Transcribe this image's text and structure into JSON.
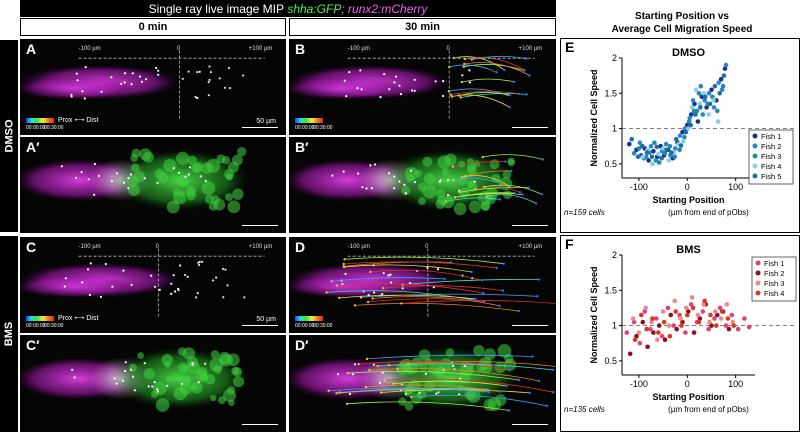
{
  "header": {
    "title_prefix": "Single ray live image MIP",
    "title_green": "shha:GFP;",
    "title_magenta": "runx2:mCherry",
    "col_0": "0 min",
    "col_30": "30 min",
    "right_title_line1": "Starting Position vs",
    "right_title_line2": "Average Cell Migration Speed"
  },
  "rows": {
    "dmso": "DMSO",
    "bms": "BMS"
  },
  "panels": {
    "A": "A",
    "B": "B",
    "A2": "A′",
    "B2": "B′",
    "C": "C",
    "D": "D",
    "C2": "C′",
    "D2": "D′",
    "E": "E",
    "F": "F"
  },
  "image_labels": {
    "minus100": "-100 µm",
    "zero": "0",
    "plus100": "+100 µm",
    "scale": "50 µm",
    "prox": "Prox",
    "dist": "Dist",
    "time_start": "00:00:00",
    "time_end": "00:30:00"
  },
  "colors": {
    "magenta": "#d11fd6",
    "green": "#2fc02f",
    "dmso_fish": [
      "#1a2f8a",
      "#2f7fd6",
      "#1f8e9a",
      "#7fd2ec",
      "#1b6fa6"
    ],
    "bms_fish": [
      "#e0407a",
      "#8a1020",
      "#ee8888",
      "#d63a1e"
    ]
  },
  "chart_data": [
    {
      "type": "scatter",
      "title": "DMSO",
      "xlabel": "Starting Position",
      "xlabel_sub": "(µm from end of pObs)",
      "ylabel": "Normalized Cell Speed",
      "xlim": [
        -135,
        140
      ],
      "ylim": [
        0.3,
        2.0
      ],
      "xticks": [
        -100,
        0,
        100
      ],
      "yticks": [
        0.5,
        1,
        1.5,
        2
      ],
      "reference_line": 1,
      "n_label": "n=159 cells",
      "legend_position": "right",
      "series": [
        {
          "name": "Fish 1",
          "points": [
            [
              -120,
              0.78
            ],
            [
              -105,
              0.7
            ],
            [
              -95,
              0.62
            ],
            [
              -88,
              0.72
            ],
            [
              -80,
              0.55
            ],
            [
              -70,
              0.68
            ],
            [
              -62,
              0.6
            ],
            [
              -55,
              0.75
            ],
            [
              -48,
              0.62
            ],
            [
              -40,
              0.7
            ],
            [
              -30,
              0.58
            ],
            [
              -20,
              0.8
            ],
            [
              -10,
              0.95
            ],
            [
              0,
              1.05
            ],
            [
              8,
              1.2
            ],
            [
              15,
              1.35
            ],
            [
              22,
              1.1
            ],
            [
              30,
              1.45
            ],
            [
              40,
              1.3
            ],
            [
              50,
              1.55
            ],
            [
              60,
              1.4
            ],
            [
              70,
              1.7
            ],
            [
              78,
              1.85
            ]
          ]
        },
        {
          "name": "Fish 2",
          "points": [
            [
              -110,
              0.65
            ],
            [
              -98,
              0.8
            ],
            [
              -85,
              0.6
            ],
            [
              -75,
              0.75
            ],
            [
              -65,
              0.55
            ],
            [
              -52,
              0.68
            ],
            [
              -44,
              0.78
            ],
            [
              -35,
              0.62
            ],
            [
              -25,
              0.72
            ],
            [
              -15,
              0.9
            ],
            [
              -5,
              1.0
            ],
            [
              5,
              1.15
            ],
            [
              12,
              1.4
            ],
            [
              20,
              1.25
            ],
            [
              28,
              1.6
            ],
            [
              36,
              1.4
            ],
            [
              45,
              1.5
            ],
            [
              55,
              1.3
            ],
            [
              65,
              1.65
            ],
            [
              72,
              1.55
            ],
            [
              80,
              1.9
            ]
          ]
        },
        {
          "name": "Fish 3",
          "points": [
            [
              -100,
              0.72
            ],
            [
              -90,
              0.58
            ],
            [
              -78,
              0.66
            ],
            [
              -68,
              0.8
            ],
            [
              -58,
              0.52
            ],
            [
              -46,
              0.65
            ],
            [
              -36,
              0.75
            ],
            [
              -26,
              0.6
            ],
            [
              -16,
              0.7
            ],
            [
              -6,
              0.88
            ],
            [
              4,
              1.1
            ],
            [
              14,
              1.25
            ],
            [
              24,
              1.5
            ],
            [
              32,
              1.2
            ],
            [
              42,
              1.35
            ],
            [
              52,
              1.45
            ],
            [
              62,
              1.25
            ],
            [
              74,
              1.6
            ]
          ]
        },
        {
          "name": "Fish 4",
          "points": [
            [
              -92,
              0.6
            ],
            [
              -82,
              0.7
            ],
            [
              -72,
              0.5
            ],
            [
              -60,
              0.64
            ],
            [
              -50,
              0.72
            ],
            [
              -38,
              0.55
            ],
            [
              -28,
              0.66
            ],
            [
              -18,
              0.78
            ],
            [
              -8,
              0.82
            ],
            [
              2,
              1.0
            ],
            [
              10,
              1.3
            ],
            [
              18,
              1.55
            ],
            [
              26,
              1.35
            ],
            [
              34,
              1.5
            ],
            [
              44,
              1.2
            ],
            [
              54,
              1.4
            ],
            [
              64,
              1.1
            ]
          ]
        },
        {
          "name": "Fish 5",
          "points": [
            [
              -115,
              0.85
            ],
            [
              -102,
              0.6
            ],
            [
              -93,
              0.75
            ],
            [
              -83,
              0.66
            ],
            [
              -73,
              0.6
            ],
            [
              -63,
              0.74
            ],
            [
              -53,
              0.58
            ],
            [
              -43,
              0.7
            ],
            [
              -33,
              0.66
            ],
            [
              -23,
              0.85
            ],
            [
              -13,
              0.76
            ],
            [
              -3,
              0.95
            ],
            [
              7,
              1.05
            ],
            [
              17,
              1.2
            ],
            [
              27,
              1.3
            ],
            [
              37,
              1.45
            ],
            [
              47,
              1.35
            ],
            [
              57,
              1.6
            ],
            [
              67,
              1.5
            ],
            [
              76,
              1.75
            ]
          ]
        }
      ]
    },
    {
      "type": "scatter",
      "title": "BMS",
      "xlabel": "Starting Position",
      "xlabel_sub": "(µm from end of pObs)",
      "ylabel": "Normalized Cell Speed",
      "xlim": [
        -135,
        140
      ],
      "ylim": [
        0.3,
        2.0
      ],
      "xticks": [
        -100,
        0,
        100
      ],
      "yticks": [
        0.5,
        1,
        1.5,
        2
      ],
      "reference_line": 1,
      "n_label": "n=135 cells",
      "legend_position": "top-right",
      "series": [
        {
          "name": "Fish 1",
          "points": [
            [
              -125,
              0.9
            ],
            [
              -110,
              1.05
            ],
            [
              -98,
              0.75
            ],
            [
              -88,
              1.2
            ],
            [
              -76,
              0.95
            ],
            [
              -64,
              1.1
            ],
            [
              -52,
              0.85
            ],
            [
              -40,
              1.25
            ],
            [
              -28,
              1.0
            ],
            [
              -16,
              1.15
            ],
            [
              -4,
              0.9
            ],
            [
              8,
              1.3
            ],
            [
              20,
              1.05
            ],
            [
              32,
              1.2
            ],
            [
              44,
              0.95
            ],
            [
              56,
              1.1
            ],
            [
              68,
              1.25
            ],
            [
              80,
              1.0
            ],
            [
              92,
              1.15
            ],
            [
              105,
              0.95
            ],
            [
              118,
              1.1
            ],
            [
              128,
              0.98
            ]
          ]
        },
        {
          "name": "Fish 2",
          "points": [
            [
              -118,
              0.6
            ],
            [
              -105,
              0.85
            ],
            [
              -92,
              1.05
            ],
            [
              -82,
              0.7
            ],
            [
              -70,
              0.9
            ],
            [
              -58,
              1.0
            ],
            [
              -46,
              0.8
            ],
            [
              -34,
              1.15
            ],
            [
              -22,
              0.95
            ],
            [
              -10,
              1.05
            ],
            [
              2,
              1.2
            ],
            [
              14,
              0.9
            ],
            [
              26,
              1.1
            ],
            [
              38,
              1.3
            ],
            [
              50,
              1.0
            ],
            [
              62,
              1.15
            ],
            [
              74,
              1.2
            ],
            [
              86,
              0.95
            ]
          ]
        },
        {
          "name": "Fish 3",
          "points": [
            [
              -112,
              1.1
            ],
            [
              -100,
              0.9
            ],
            [
              -86,
              1.25
            ],
            [
              -74,
              1.05
            ],
            [
              -62,
              0.8
            ],
            [
              -50,
              1.2
            ],
            [
              -38,
              1.0
            ],
            [
              -26,
              1.35
            ],
            [
              -14,
              1.1
            ],
            [
              -2,
              1.25
            ],
            [
              10,
              1.4
            ],
            [
              22,
              1.15
            ],
            [
              34,
              1.3
            ],
            [
              46,
              1.05
            ],
            [
              58,
              1.2
            ],
            [
              70,
              1.1
            ],
            [
              82,
              1.3
            ],
            [
              94,
              1.05
            ]
          ]
        },
        {
          "name": "Fish 4",
          "points": [
            [
              -108,
              0.8
            ],
            [
              -95,
              1.15
            ],
            [
              -84,
              0.95
            ],
            [
              -72,
              1.1
            ],
            [
              -60,
              0.9
            ],
            [
              -48,
              1.05
            ],
            [
              -36,
              0.85
            ],
            [
              -24,
              1.2
            ],
            [
              -12,
              1.0
            ],
            [
              0,
              1.15
            ],
            [
              12,
              1.25
            ],
            [
              24,
              1.05
            ],
            [
              36,
              1.35
            ],
            [
              48,
              1.15
            ],
            [
              60,
              1.0
            ],
            [
              72,
              1.2
            ],
            [
              84,
              1.1
            ],
            [
              96,
              1.0
            ]
          ]
        }
      ]
    }
  ]
}
